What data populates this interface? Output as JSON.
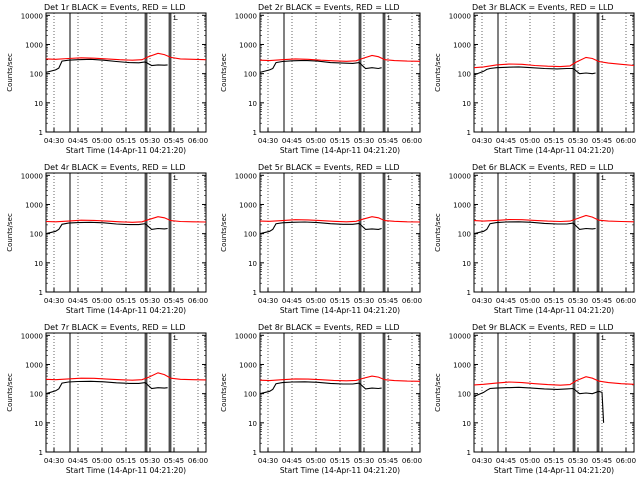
{
  "colors": {
    "events": "#000000",
    "lld": "#ff0000",
    "axis": "#000000",
    "grid": "#000000"
  },
  "shared": {
    "xlabel": "Start Time (14-Apr-11 04:21:20)",
    "ylabel": "Counts/sec",
    "xticks": [
      "04:30",
      "04:45",
      "05:00",
      "05:15",
      "05:30",
      "05:45",
      "06:00"
    ],
    "yticks": [
      "1",
      "10",
      "100",
      "1000",
      "10000"
    ],
    "legend_flag": "L"
  },
  "chart_data": [
    {
      "type": "line",
      "title": "Det 1r BLACK = Events, RED = LLD",
      "xlabel": "Start Time (14-Apr-11 04:21:20)",
      "ylabel": "Counts/sec",
      "xlim": [
        0,
        100
      ],
      "ylim": [
        1,
        12000
      ],
      "yscale": "log",
      "vlines": [
        15,
        62,
        63,
        77,
        78
      ],
      "series": [
        {
          "name": "Events",
          "color": "#000000",
          "x": [
            0,
            6,
            8,
            10,
            14,
            20,
            28,
            36,
            44,
            52,
            58,
            62,
            66,
            70,
            74,
            76
          ],
          "y": [
            110,
            135,
            155,
            270,
            290,
            300,
            310,
            290,
            260,
            240,
            235,
            250,
            190,
            200,
            195,
            200
          ]
        },
        {
          "name": "LLD",
          "color": "#ff0000",
          "x": [
            0,
            6,
            14,
            22,
            30,
            38,
            46,
            54,
            60,
            64,
            70,
            74,
            78,
            84,
            92,
            100
          ],
          "y": [
            320,
            310,
            330,
            350,
            340,
            320,
            300,
            290,
            300,
            380,
            500,
            450,
            360,
            320,
            310,
            300
          ]
        }
      ]
    },
    {
      "type": "line",
      "title": "Det 2r BLACK = Events, RED = LLD",
      "xlabel": "Start Time (14-Apr-11 04:21:20)",
      "ylabel": "Counts/sec",
      "xlim": [
        0,
        100
      ],
      "ylim": [
        1,
        12000
      ],
      "yscale": "log",
      "vlines": [
        15,
        62,
        63,
        77,
        78
      ],
      "series": [
        {
          "name": "Events",
          "color": "#000000",
          "x": [
            0,
            6,
            8,
            10,
            14,
            20,
            28,
            36,
            44,
            52,
            58,
            62,
            66,
            70,
            74,
            76
          ],
          "y": [
            110,
            135,
            150,
            240,
            260,
            275,
            285,
            270,
            240,
            230,
            225,
            240,
            150,
            160,
            150,
            160
          ]
        },
        {
          "name": "LLD",
          "color": "#ff0000",
          "x": [
            0,
            6,
            14,
            22,
            30,
            38,
            46,
            54,
            60,
            64,
            70,
            74,
            78,
            84,
            92,
            100
          ],
          "y": [
            290,
            280,
            300,
            320,
            310,
            290,
            275,
            265,
            275,
            330,
            420,
            380,
            300,
            280,
            270,
            265
          ]
        }
      ]
    },
    {
      "type": "line",
      "title": "Det 3r BLACK = Events, RED = LLD",
      "xlabel": "Start Time (14-Apr-11 04:21:20)",
      "ylabel": "Counts/sec",
      "xlim": [
        0,
        100
      ],
      "ylim": [
        1,
        12000
      ],
      "yscale": "log",
      "vlines": [
        15,
        62,
        63,
        77,
        78
      ],
      "series": [
        {
          "name": "Events",
          "color": "#000000",
          "x": [
            0,
            6,
            8,
            10,
            14,
            20,
            28,
            36,
            44,
            52,
            58,
            62,
            66,
            70,
            74,
            76
          ],
          "y": [
            90,
            120,
            140,
            150,
            160,
            165,
            170,
            160,
            150,
            145,
            150,
            150,
            100,
            105,
            100,
            105
          ]
        },
        {
          "name": "LLD",
          "color": "#ff0000",
          "x": [
            0,
            6,
            14,
            22,
            30,
            38,
            46,
            54,
            60,
            64,
            70,
            74,
            78,
            84,
            92,
            100
          ],
          "y": [
            160,
            170,
            200,
            215,
            210,
            190,
            180,
            175,
            185,
            250,
            360,
            330,
            260,
            230,
            210,
            190
          ]
        }
      ]
    },
    {
      "type": "line",
      "title": "Det 4r BLACK = Events, RED = LLD",
      "xlabel": "Start Time (14-Apr-11 04:21:20)",
      "ylabel": "Counts/sec",
      "xlim": [
        0,
        100
      ],
      "ylim": [
        1,
        12000
      ],
      "yscale": "log",
      "vlines": [
        15,
        62,
        63,
        77,
        78
      ],
      "series": [
        {
          "name": "Events",
          "color": "#000000",
          "x": [
            0,
            6,
            8,
            10,
            14,
            20,
            28,
            36,
            44,
            52,
            58,
            62,
            66,
            70,
            74,
            76
          ],
          "y": [
            100,
            120,
            140,
            210,
            230,
            240,
            245,
            235,
            215,
            205,
            205,
            220,
            140,
            150,
            145,
            150
          ]
        },
        {
          "name": "LLD",
          "color": "#ff0000",
          "x": [
            0,
            6,
            14,
            22,
            30,
            38,
            46,
            54,
            60,
            64,
            70,
            74,
            78,
            84,
            92,
            100
          ],
          "y": [
            260,
            255,
            270,
            290,
            285,
            270,
            255,
            245,
            255,
            300,
            380,
            350,
            280,
            260,
            255,
            250
          ]
        }
      ]
    },
    {
      "type": "line",
      "title": "Det 5r BLACK = Events, RED = LLD",
      "xlabel": "Start Time (14-Apr-11 04:21:20)",
      "ylabel": "Counts/sec",
      "xlim": [
        0,
        100
      ],
      "ylim": [
        1,
        12000
      ],
      "yscale": "log",
      "vlines": [
        15,
        62,
        63,
        77,
        78
      ],
      "series": [
        {
          "name": "Events",
          "color": "#000000",
          "x": [
            0,
            6,
            8,
            10,
            14,
            20,
            28,
            36,
            44,
            52,
            58,
            62,
            66,
            70,
            74,
            76
          ],
          "y": [
            100,
            120,
            140,
            220,
            235,
            245,
            250,
            240,
            220,
            210,
            210,
            225,
            140,
            145,
            140,
            150
          ]
        },
        {
          "name": "LLD",
          "color": "#ff0000",
          "x": [
            0,
            6,
            14,
            22,
            30,
            38,
            46,
            54,
            60,
            64,
            70,
            74,
            78,
            84,
            92,
            100
          ],
          "y": [
            270,
            265,
            280,
            300,
            295,
            280,
            265,
            255,
            265,
            310,
            380,
            350,
            280,
            265,
            255,
            250
          ]
        }
      ]
    },
    {
      "type": "line",
      "title": "Det 6r BLACK = Events, RED = LLD",
      "xlabel": "Start Time (14-Apr-11 04:21:20)",
      "ylabel": "Counts/sec",
      "xlim": [
        0,
        100
      ],
      "ylim": [
        1,
        12000
      ],
      "yscale": "log",
      "vlines": [
        15,
        62,
        63,
        77,
        78
      ],
      "series": [
        {
          "name": "Events",
          "color": "#000000",
          "x": [
            0,
            6,
            8,
            10,
            14,
            20,
            28,
            36,
            44,
            52,
            58,
            62,
            66,
            70,
            74,
            76
          ],
          "y": [
            100,
            120,
            140,
            220,
            240,
            250,
            255,
            245,
            225,
            215,
            215,
            230,
            140,
            150,
            145,
            150
          ]
        },
        {
          "name": "LLD",
          "color": "#ff0000",
          "x": [
            0,
            6,
            14,
            22,
            30,
            38,
            46,
            54,
            60,
            64,
            70,
            74,
            78,
            84,
            92,
            100
          ],
          "y": [
            280,
            270,
            285,
            305,
            300,
            285,
            270,
            260,
            270,
            320,
            420,
            370,
            290,
            270,
            260,
            255
          ]
        }
      ]
    },
    {
      "type": "line",
      "title": "Det 7r BLACK = Events, RED = LLD",
      "xlabel": "Start Time (14-Apr-11 04:21:20)",
      "ylabel": "Counts/sec",
      "xlim": [
        0,
        100
      ],
      "ylim": [
        1,
        12000
      ],
      "yscale": "log",
      "vlines": [
        15,
        62,
        63,
        77,
        78
      ],
      "series": [
        {
          "name": "Events",
          "color": "#000000",
          "x": [
            0,
            6,
            8,
            10,
            14,
            20,
            28,
            36,
            44,
            52,
            58,
            62,
            66,
            70,
            74,
            76
          ],
          "y": [
            100,
            125,
            145,
            230,
            250,
            260,
            265,
            255,
            235,
            225,
            225,
            240,
            150,
            160,
            155,
            160
          ]
        },
        {
          "name": "LLD",
          "color": "#ff0000",
          "x": [
            0,
            6,
            14,
            22,
            30,
            38,
            46,
            54,
            60,
            64,
            70,
            74,
            78,
            84,
            92,
            100
          ],
          "y": [
            310,
            300,
            320,
            340,
            335,
            315,
            300,
            290,
            300,
            360,
            520,
            450,
            340,
            310,
            300,
            295
          ]
        }
      ]
    },
    {
      "type": "line",
      "title": "Det 8r BLACK = Events, RED = LLD",
      "xlabel": "Start Time (14-Apr-11 04:21:20)",
      "ylabel": "Counts/sec",
      "xlim": [
        0,
        100
      ],
      "ylim": [
        1,
        12000
      ],
      "yscale": "log",
      "vlines": [
        15,
        62,
        63,
        77,
        78
      ],
      "series": [
        {
          "name": "Events",
          "color": "#000000",
          "x": [
            0,
            6,
            8,
            10,
            14,
            20,
            28,
            36,
            44,
            52,
            58,
            62,
            66,
            70,
            74,
            76
          ],
          "y": [
            100,
            120,
            140,
            220,
            240,
            250,
            255,
            245,
            225,
            215,
            215,
            230,
            145,
            155,
            150,
            155
          ]
        },
        {
          "name": "LLD",
          "color": "#ff0000",
          "x": [
            0,
            6,
            14,
            22,
            30,
            38,
            46,
            54,
            60,
            64,
            70,
            74,
            78,
            84,
            92,
            100
          ],
          "y": [
            290,
            280,
            300,
            320,
            315,
            300,
            285,
            275,
            285,
            330,
            400,
            370,
            300,
            280,
            270,
            265
          ]
        }
      ]
    },
    {
      "type": "line",
      "title": "Det 9r BLACK = Events, RED = LLD",
      "xlabel": "Start Time (14-Apr-11 04:21:20)",
      "ylabel": "Counts/sec",
      "xlim": [
        0,
        100
      ],
      "ylim": [
        1,
        12000
      ],
      "yscale": "log",
      "vlines": [
        15,
        62,
        63,
        77,
        78
      ],
      "series": [
        {
          "name": "Events",
          "color": "#000000",
          "x": [
            0,
            6,
            8,
            10,
            14,
            20,
            28,
            36,
            44,
            52,
            58,
            62,
            66,
            70,
            74,
            78,
            80,
            81
          ],
          "y": [
            80,
            110,
            130,
            150,
            155,
            160,
            165,
            155,
            145,
            140,
            145,
            150,
            100,
            105,
            100,
            120,
            110,
            10
          ]
        },
        {
          "name": "LLD",
          "color": "#ff0000",
          "x": [
            0,
            6,
            14,
            22,
            30,
            38,
            46,
            54,
            60,
            64,
            70,
            74,
            78,
            84,
            92,
            100
          ],
          "y": [
            200,
            210,
            230,
            250,
            240,
            220,
            205,
            195,
            205,
            280,
            380,
            340,
            270,
            240,
            220,
            210
          ]
        }
      ]
    }
  ]
}
